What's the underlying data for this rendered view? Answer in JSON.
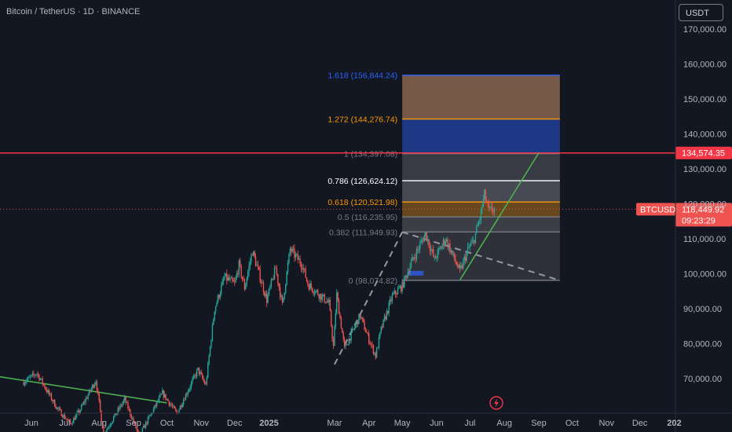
{
  "header": {
    "symbol_title": "Bitcoin / TetherUS · 1D · BINANCE"
  },
  "currency_button": {
    "label": "USDT"
  },
  "colors": {
    "background": "#131722",
    "up_candle": "#26a69a",
    "down_candle": "#ef5350",
    "axis_text": "#b2b5be",
    "resistance_line": "#f23645",
    "trendline": "#4caf50",
    "fib_1618": "#2962ff",
    "fib_1272": "#ff9800",
    "fib_1": "#787b86",
    "fib_0786": "#ffffff",
    "fib_0618": "#ff9800",
    "fib_05": "#787b86",
    "fib_0382": "#787b86",
    "fib_0": "#787b86"
  },
  "price_tags": {
    "resistance": {
      "label": "134,574.35",
      "value": 134574.35
    },
    "symbol": {
      "label": "BTCUSDT",
      "value": 118449.92,
      "price_label": "118,449.92",
      "countdown": "09:23:29"
    }
  },
  "fib_levels": [
    {
      "ratio": "1.618",
      "price": 156844.24,
      "label": "1.618 (156,844.24)",
      "color": "#2962ff",
      "fill": "#7a5c48"
    },
    {
      "ratio": "1.272",
      "price": 144276.74,
      "label": "1.272 (144,276.74)",
      "color": "#ff9800",
      "fill": "#1e3a8a"
    },
    {
      "ratio": "1",
      "price": 134397.08,
      "label": "1 (134,397.08)",
      "color": "#787b86",
      "fill": "#3a3d47"
    },
    {
      "ratio": "0.786",
      "price": 126624.12,
      "label": "0.786 (126,624.12)",
      "color": "#ffffff",
      "fill": "#4a4d57"
    },
    {
      "ratio": "0.618",
      "price": 120521.98,
      "label": "0.618 (120,521.98)",
      "color": "#ff9800",
      "fill": "#6b4a1e"
    },
    {
      "ratio": "0.5",
      "price": 116235.95,
      "label": "0.5 (116,235.95)",
      "color": "#787b86",
      "fill": "#3e4049"
    },
    {
      "ratio": "0.382",
      "price": 111949.93,
      "label": "0.382 (111,949.93)",
      "color": "#787b86",
      "fill": "#30333c"
    },
    {
      "ratio": "0",
      "price": 98074.82,
      "label": "0 (98,074.82)",
      "color": "#787b86",
      "fill": "#30333c"
    }
  ],
  "chart_data": {
    "type": "candlestick",
    "symbol": "BTCUSDT",
    "timeframe": "1D",
    "exchange": "BINANCE",
    "y_axis": {
      "ticks": [
        "170,000.00",
        "160,000.00",
        "150,000.00",
        "140,000.00",
        "130,000.00",
        "120,000.00",
        "110,000.00",
        "100,000.00",
        "90,000.00",
        "80,000.00",
        "70,000.00"
      ],
      "tick_values": [
        170000,
        160000,
        150000,
        140000,
        130000,
        120000,
        110000,
        100000,
        90000,
        80000,
        70000
      ],
      "range": [
        63000,
        174000
      ]
    },
    "x_axis": {
      "ticks": [
        "Jun",
        "Jul",
        "Aug",
        "Sep",
        "Oct",
        "Nov",
        "Dec",
        "2025",
        "Mar",
        "Apr",
        "May",
        "Jun",
        "Jul",
        "Aug",
        "Sep",
        "Oct",
        "Nov",
        "Dec",
        "202"
      ],
      "tick_dates": [
        "2024-06-01",
        "2024-07-01",
        "2024-08-01",
        "2024-09-01",
        "2024-10-01",
        "2024-11-01",
        "2024-12-01",
        "2025-01-01",
        "2025-03-01",
        "2025-04-01",
        "2025-05-01",
        "2025-06-01",
        "2025-07-01",
        "2025-08-01",
        "2025-09-01",
        "2025-10-01",
        "2025-11-01",
        "2025-12-01",
        "2026-01-01"
      ]
    },
    "price_path": [
      [
        "2024-05-25",
        69000
      ],
      [
        "2024-06-06",
        71500
      ],
      [
        "2024-06-24",
        61500
      ],
      [
        "2024-07-06",
        57000
      ],
      [
        "2024-07-14",
        60500
      ],
      [
        "2024-07-29",
        69500
      ],
      [
        "2024-08-05",
        54000
      ],
      [
        "2024-08-24",
        64000
      ],
      [
        "2024-09-06",
        53500
      ],
      [
        "2024-09-27",
        65800
      ],
      [
        "2024-10-10",
        60000
      ],
      [
        "2024-10-29",
        72500
      ],
      [
        "2024-11-05",
        68000
      ],
      [
        "2024-11-13",
        90000
      ],
      [
        "2024-11-22",
        99000
      ],
      [
        "2024-12-01",
        97000
      ],
      [
        "2024-12-05",
        102500
      ],
      [
        "2024-12-10",
        96000
      ],
      [
        "2024-12-17",
        106500
      ],
      [
        "2024-12-30",
        92500
      ],
      [
        "2025-01-07",
        101500
      ],
      [
        "2025-01-13",
        91000
      ],
      [
        "2025-01-20",
        107000
      ],
      [
        "2025-01-31",
        102500
      ],
      [
        "2025-02-05",
        97000
      ],
      [
        "2025-02-24",
        91500
      ],
      [
        "2025-02-28",
        79000
      ],
      [
        "2025-03-03",
        94000
      ],
      [
        "2025-03-10",
        78500
      ],
      [
        "2025-03-24",
        88000
      ],
      [
        "2025-03-31",
        82000
      ],
      [
        "2025-04-07",
        76500
      ],
      [
        "2025-04-12",
        84000
      ],
      [
        "2025-04-22",
        93500
      ],
      [
        "2025-05-01",
        96500
      ],
      [
        "2025-05-09",
        103000
      ],
      [
        "2025-05-22",
        111500
      ],
      [
        "2025-05-30",
        104000
      ],
      [
        "2025-06-09",
        110000
      ],
      [
        "2025-06-22",
        100500
      ],
      [
        "2025-06-30",
        107500
      ],
      [
        "2025-07-04",
        109000
      ],
      [
        "2025-07-10",
        116000
      ],
      [
        "2025-07-14",
        122500
      ],
      [
        "2025-07-18",
        117800
      ],
      [
        "2025-07-23",
        118449.92
      ]
    ],
    "annotations": {
      "resistance_price": 134574.35,
      "long_downtrend": {
        "from": [
          "2024-03-14",
          73000
        ],
        "to": [
          "2024-10-01",
          63000
        ]
      },
      "upward_trendline": {
        "from": [
          "2025-06-22",
          98200
        ],
        "to": [
          "2025-09-01",
          134600
        ]
      },
      "dashed_projection_up": {
        "from": [
          "2025-03-01",
          74000
        ],
        "to": [
          "2025-05-01",
          111900
        ]
      },
      "dashed_projection_down": {
        "from": [
          "2025-05-01",
          111900
        ],
        "to": [
          "2025-09-20",
          98074.82
        ]
      }
    }
  }
}
